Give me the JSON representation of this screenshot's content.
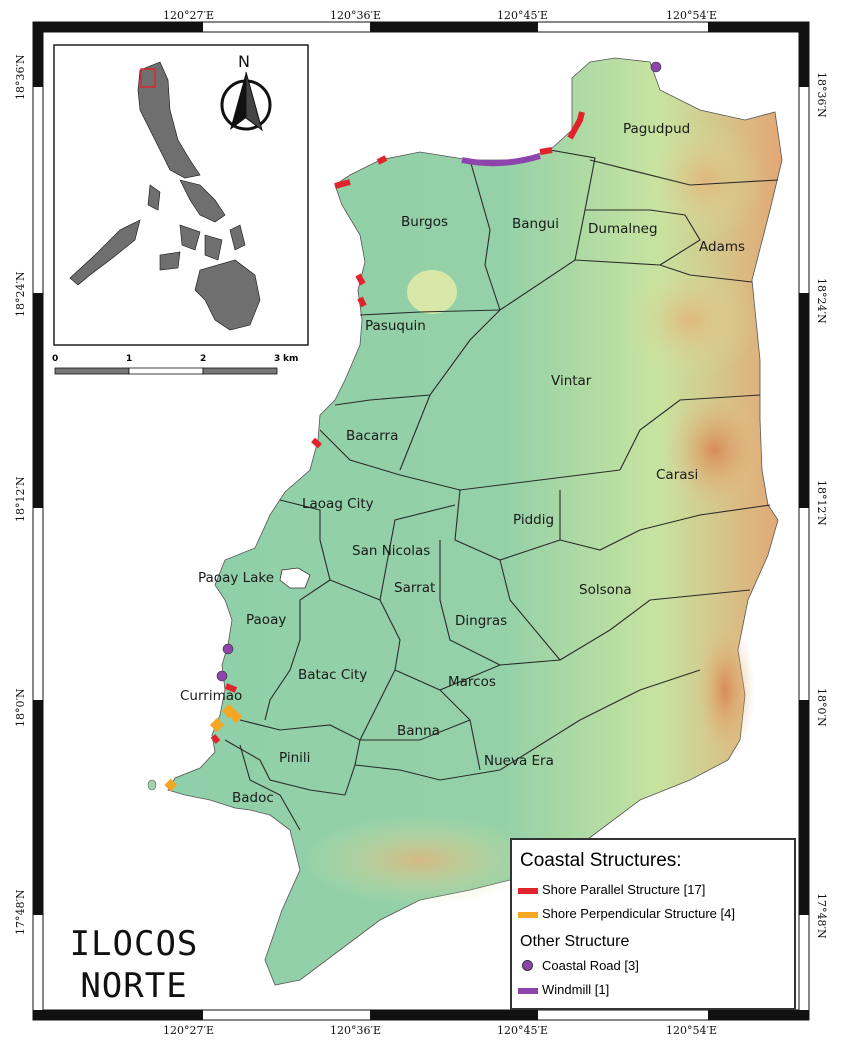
{
  "map": {
    "title_line1": "ILOCOS",
    "title_line2": "NORTE",
    "north_label": "N",
    "graticule": {
      "top_longitudes": [
        "120°27′E",
        "120°36′E",
        "120°45′E",
        "120°54′E"
      ],
      "bottom_longitudes": [
        "120°27′E",
        "120°36′E",
        "120°45′E",
        "120°54′E"
      ],
      "left_latitudes": [
        "18°36′N",
        "18°24′N",
        "18°12′N",
        "18°0′N",
        "17°48′N"
      ],
      "right_latitudes": [
        "18°36′N",
        "18°24′N",
        "18°12′N",
        "18°0′N",
        "17°48′N"
      ]
    },
    "municipalities": [
      "Pagudpud",
      "Burgos",
      "Bangui",
      "Dumalneg",
      "Adams",
      "Pasuquin",
      "Vintar",
      "Bacarra",
      "Carasi",
      "Laoag City",
      "Piddig",
      "San Nicolas",
      "Paoay Lake",
      "Sarrat",
      "Solsona",
      "Paoay",
      "Dingras",
      "Batac City",
      "Currimao",
      "Marcos",
      "Banna",
      "Pinili",
      "Nueva Era",
      "Badoc"
    ],
    "scale_bar": {
      "ticks": [
        "0",
        "1",
        "2",
        "3"
      ],
      "unit": "km"
    }
  },
  "legend": {
    "coastal_heading": "Coastal Structures:",
    "other_heading": "Other Structure",
    "items": [
      {
        "label": "Shore Parallel Structure [17]",
        "color": "#e0242b",
        "kind": "line"
      },
      {
        "label": "Shore Perpendicular Structure [4]",
        "color": "#f5a623",
        "kind": "line"
      },
      {
        "label": "Coastal Road [3]",
        "color": "#8e44ad",
        "kind": "dot"
      },
      {
        "label": "Windmill [1]",
        "color": "#8e44ad",
        "kind": "line"
      }
    ]
  },
  "colors": {
    "land_low": "#8fcfa9",
    "land_mid": "#c8e3a0",
    "land_high": "#e09a6a",
    "boundary": "#2b2b2b"
  }
}
